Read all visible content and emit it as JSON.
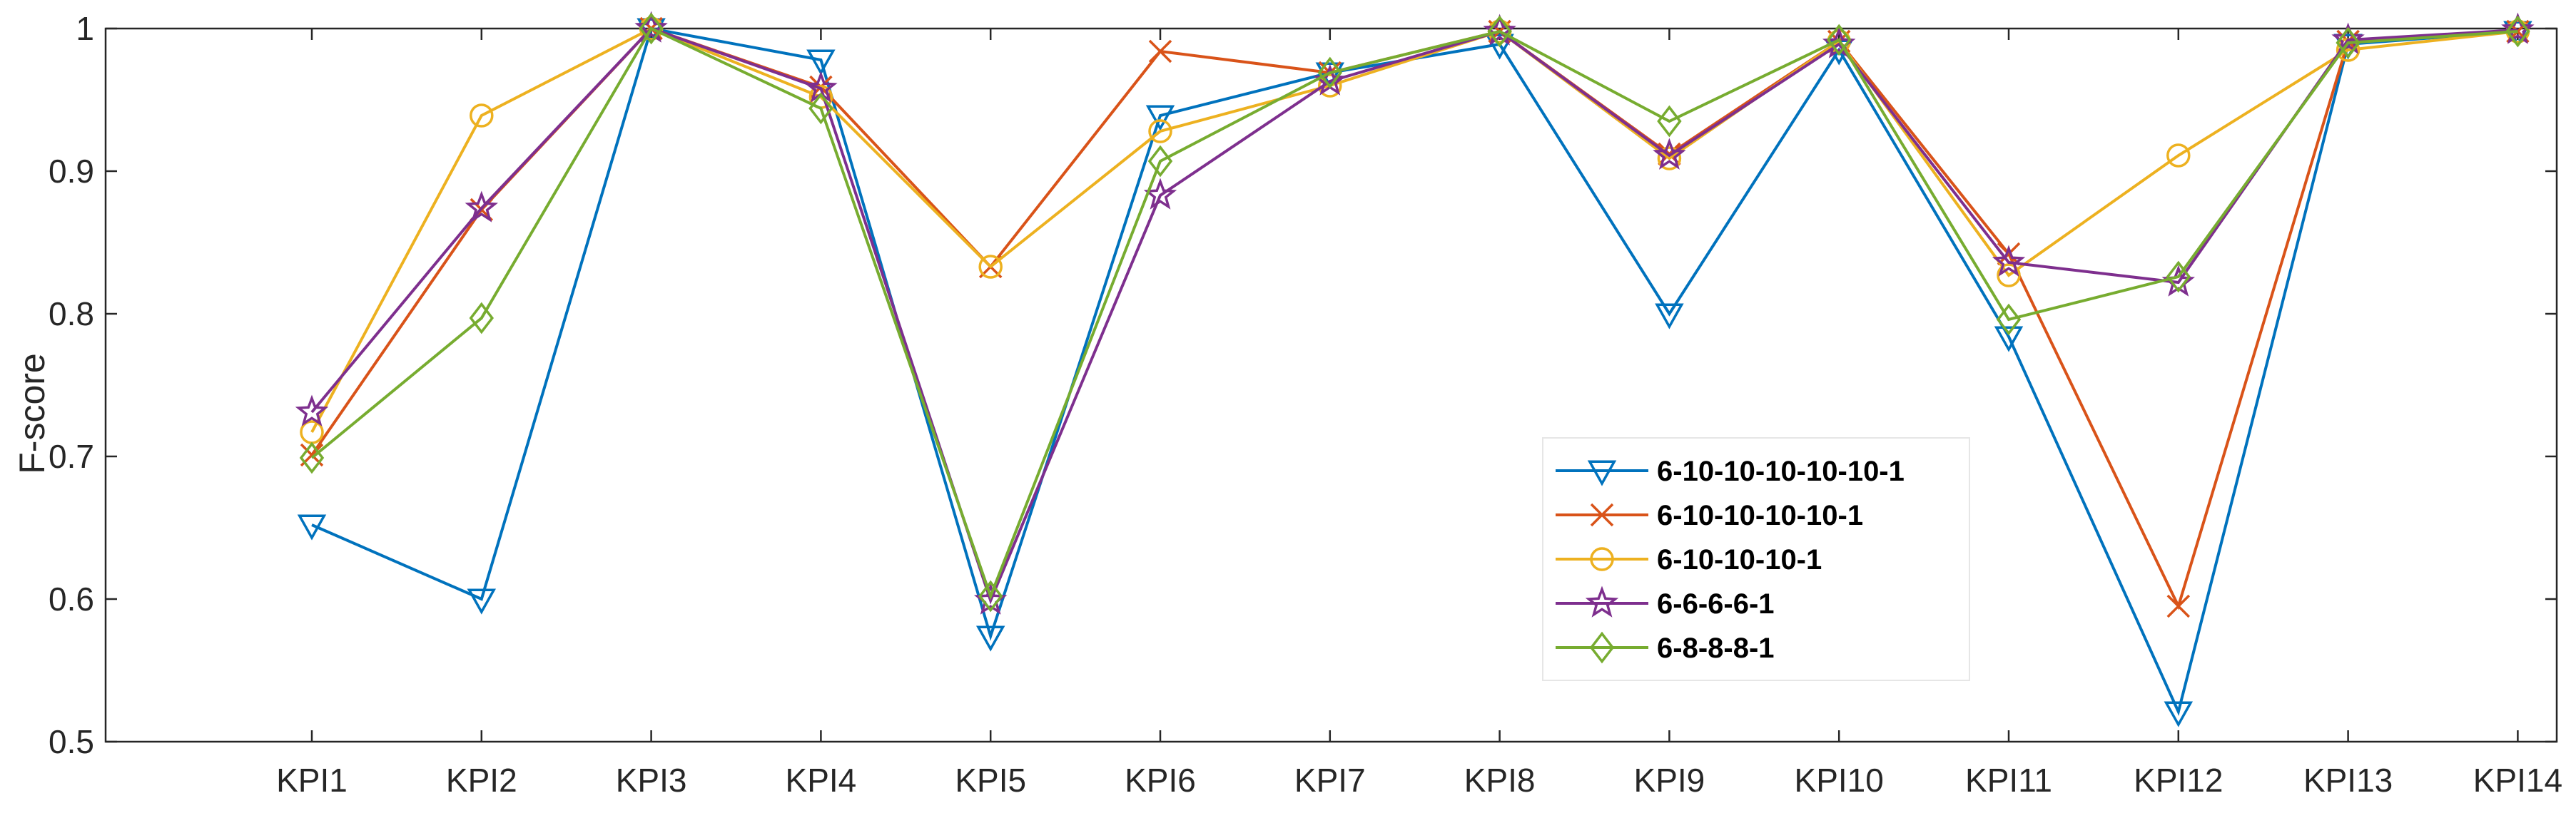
{
  "chart_data": {
    "type": "line",
    "title": "",
    "xlabel": "",
    "ylabel": "F-score",
    "ylim": [
      0.5,
      1
    ],
    "yticks": [
      0.5,
      0.6,
      0.7,
      0.8,
      0.9,
      1
    ],
    "ytick_labels": [
      "0.5",
      "0.6",
      "0.7",
      "0.8",
      "0.9",
      "1"
    ],
    "categories": [
      "KPI1",
      "KPI2",
      "KPI3",
      "KPI4",
      "KPI5",
      "KPI6",
      "KPI7",
      "KPI8",
      "KPI9",
      "KPI10",
      "KPI11",
      "KPI12",
      "KPI13",
      "KPI14"
    ],
    "grid": false,
    "legend_position": "center-right",
    "series": [
      {
        "name": "6-10-10-10-10-10-1",
        "color": "#0072BD",
        "marker": "triangle-down",
        "values": [
          0.652,
          0.6,
          1.0,
          0.978,
          0.574,
          0.939,
          0.969,
          0.989,
          0.8,
          0.985,
          0.784,
          0.521,
          0.989,
          0.998
        ]
      },
      {
        "name": "6-10-10-10-10-1",
        "color": "#D95319",
        "marker": "x",
        "values": [
          0.701,
          0.873,
          1.0,
          0.959,
          0.833,
          0.984,
          0.969,
          0.998,
          0.912,
          0.991,
          0.842,
          0.595,
          0.991,
          0.998
        ]
      },
      {
        "name": "6-10-10-10-1",
        "color": "#EDB120",
        "marker": "circle",
        "values": [
          0.717,
          0.939,
          1.0,
          0.952,
          0.833,
          0.928,
          0.96,
          0.998,
          0.909,
          0.991,
          0.827,
          0.911,
          0.985,
          0.998
        ]
      },
      {
        "name": "6-6-6-6-1",
        "color": "#7E2F8E",
        "marker": "star",
        "values": [
          0.731,
          0.874,
          1.0,
          0.958,
          0.599,
          0.883,
          0.963,
          0.998,
          0.911,
          0.989,
          0.836,
          0.822,
          0.992,
          0.999
        ]
      },
      {
        "name": "6-8-8-8-1",
        "color": "#77AC30",
        "marker": "diamond",
        "values": [
          0.699,
          0.797,
          1.0,
          0.944,
          0.602,
          0.907,
          0.969,
          0.998,
          0.935,
          0.992,
          0.796,
          0.826,
          0.99,
          0.998
        ]
      }
    ]
  }
}
